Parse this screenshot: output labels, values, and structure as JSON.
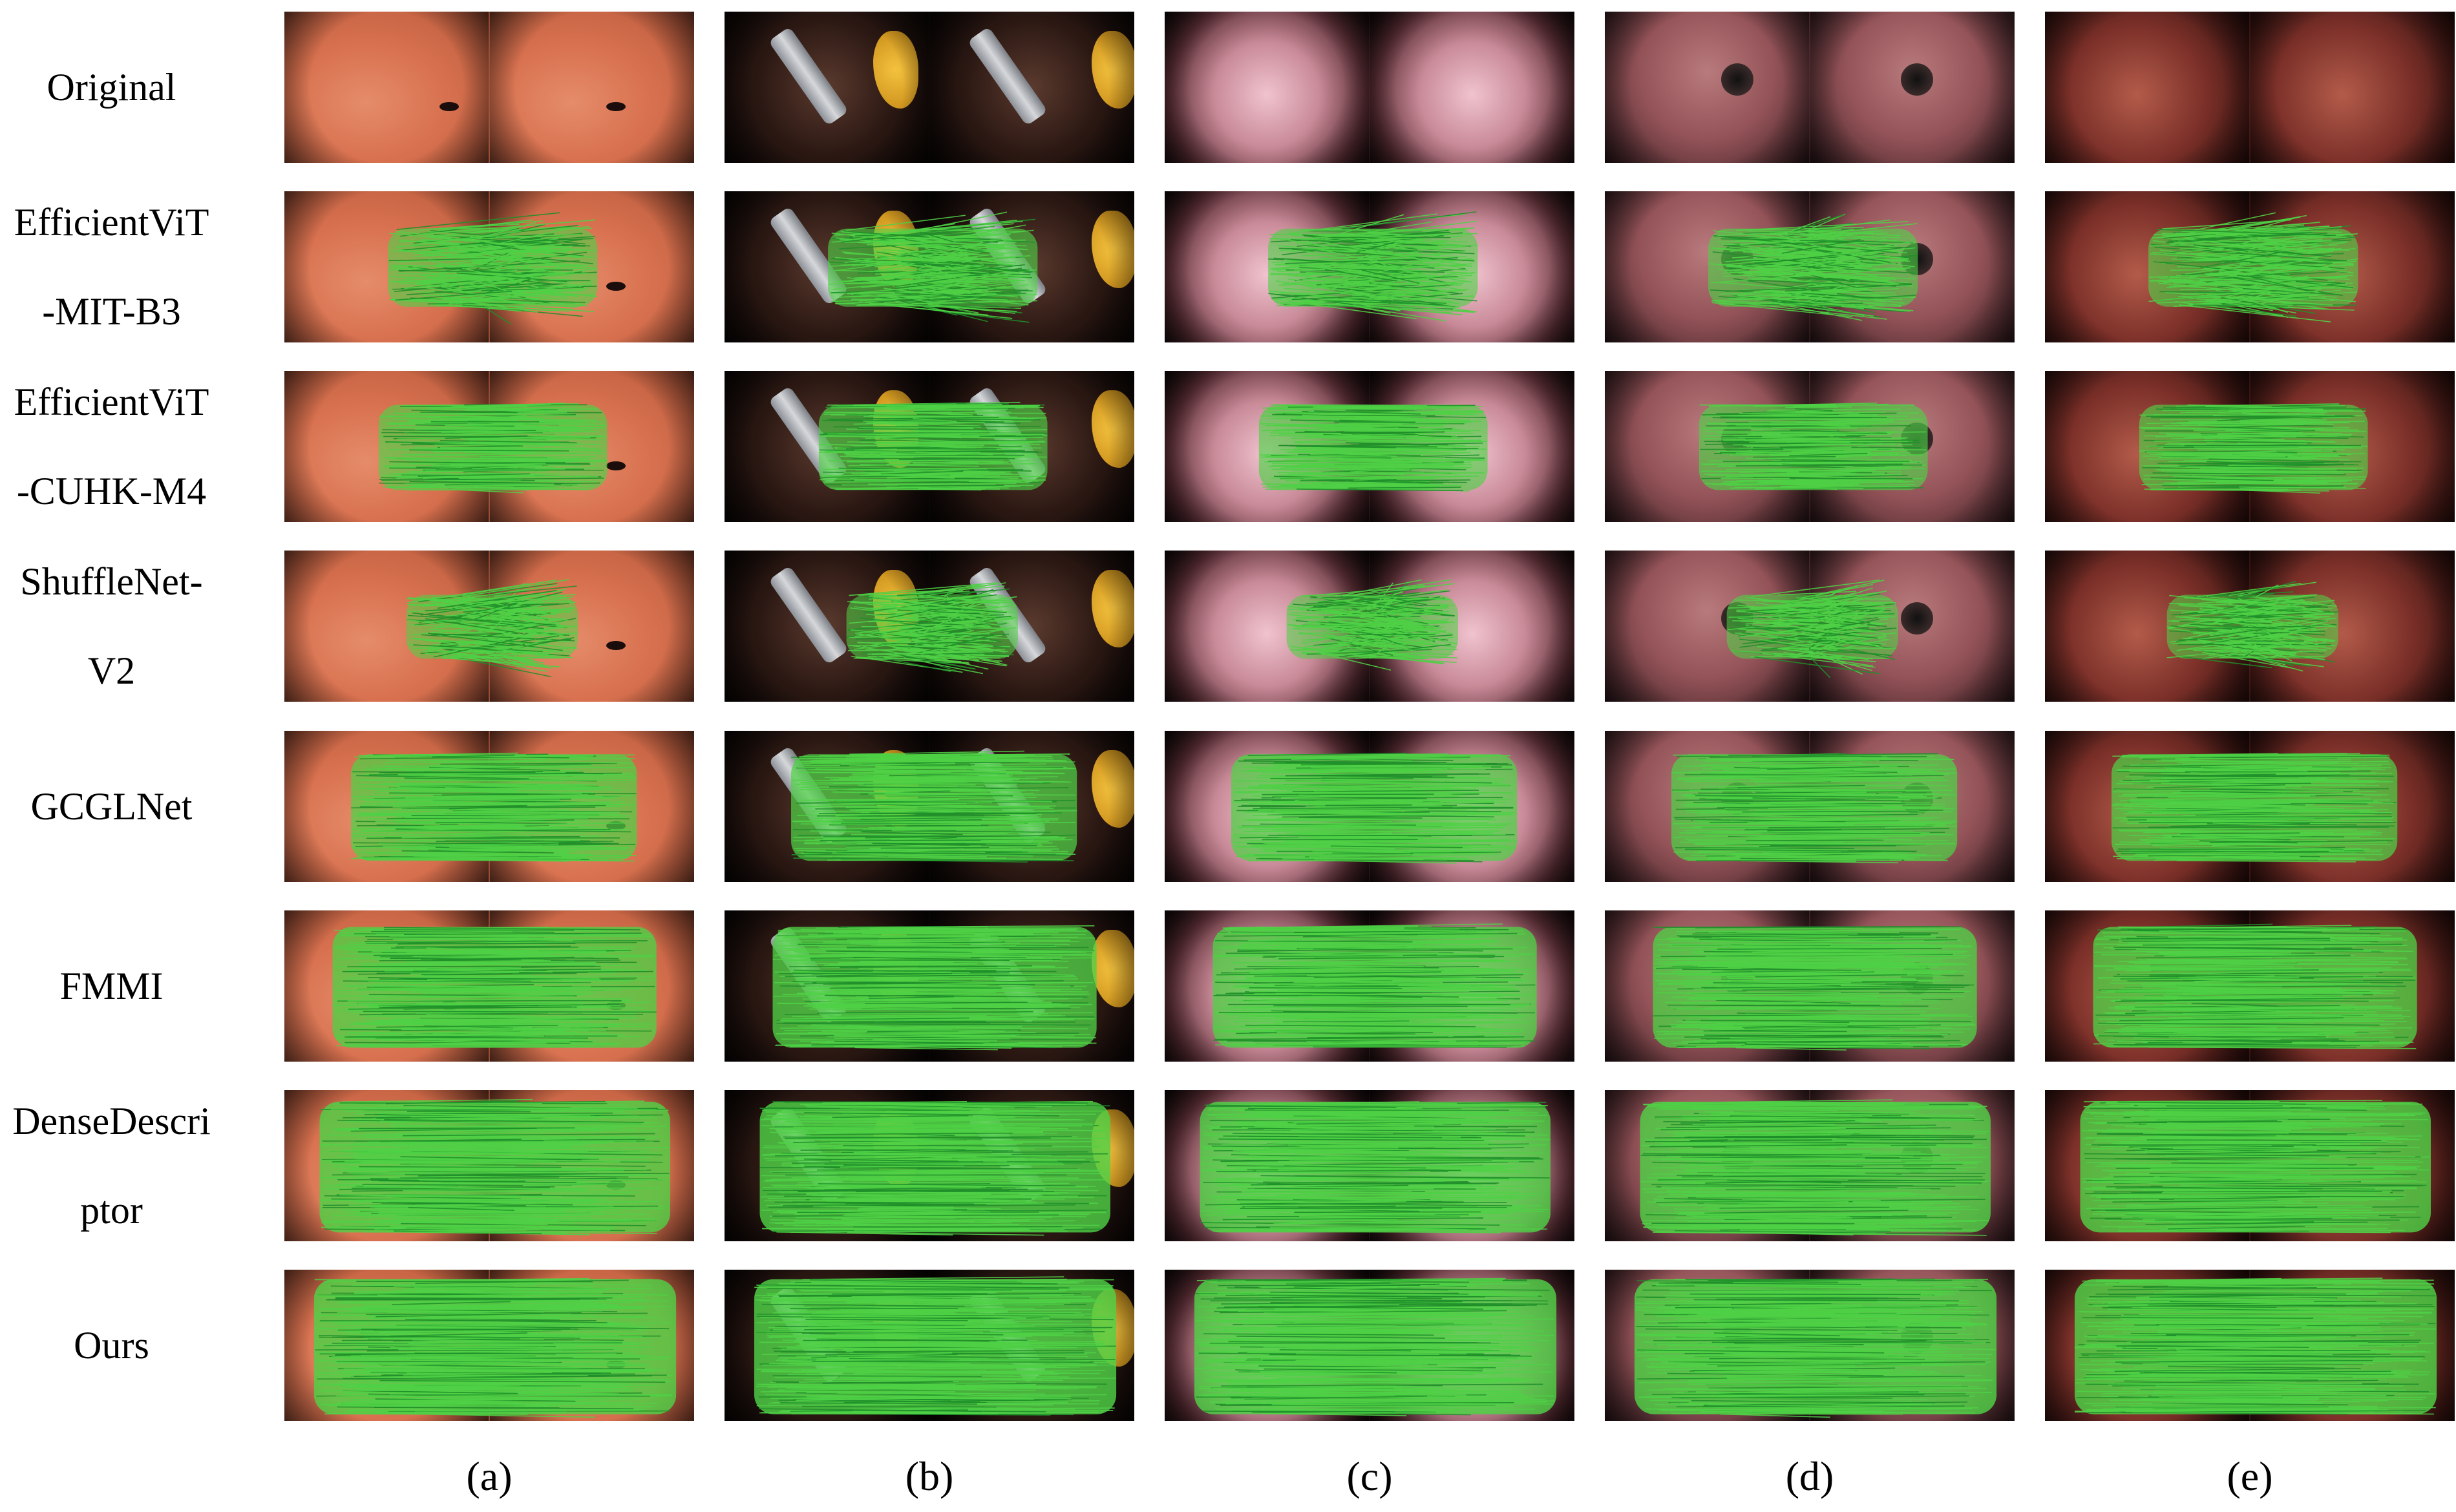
{
  "figure": {
    "rows": [
      {
        "key": "original",
        "label_lines": [
          "Original"
        ],
        "has_matches": false
      },
      {
        "key": "effvit-mit-b3",
        "label_lines": [
          "EfficientViT",
          "-MIT-B3"
        ],
        "has_matches": true,
        "match_density": 0.55
      },
      {
        "key": "effvit-cuhk-m4",
        "label_lines": [
          "EfficientViT",
          "-CUHK-M4"
        ],
        "has_matches": true,
        "match_density": 0.6
      },
      {
        "key": "shufflenet-v2",
        "label_lines": [
          "ShuffleNet-",
          "V2"
        ],
        "has_matches": true,
        "match_density": 0.45
      },
      {
        "key": "gcglnet",
        "label_lines": [
          "GCGLNet"
        ],
        "has_matches": true,
        "match_density": 0.75
      },
      {
        "key": "fmmi",
        "label_lines": [
          "FMMI"
        ],
        "has_matches": true,
        "match_density": 0.85
      },
      {
        "key": "densedescriptor",
        "label_lines": [
          "DenseDescri",
          "ptor"
        ],
        "has_matches": true,
        "match_density": 0.92
      },
      {
        "key": "ours",
        "label_lines": [
          "Ours"
        ],
        "has_matches": true,
        "match_density": 0.95
      }
    ],
    "columns": [
      {
        "key": "a",
        "label": "(a)",
        "scene": "stomach-fold"
      },
      {
        "key": "b",
        "label": "(b)",
        "scene": "surgical-tool"
      },
      {
        "key": "c",
        "label": "(c)",
        "scene": "vascular-tissue"
      },
      {
        "key": "d",
        "label": "(d)",
        "scene": "esophagus-lumen"
      },
      {
        "key": "e",
        "label": "(e)",
        "scene": "bleeding-tissue"
      }
    ],
    "colors": {
      "match_line": "#4fd146",
      "match_line_dark": "#1f8f2a"
    }
  }
}
